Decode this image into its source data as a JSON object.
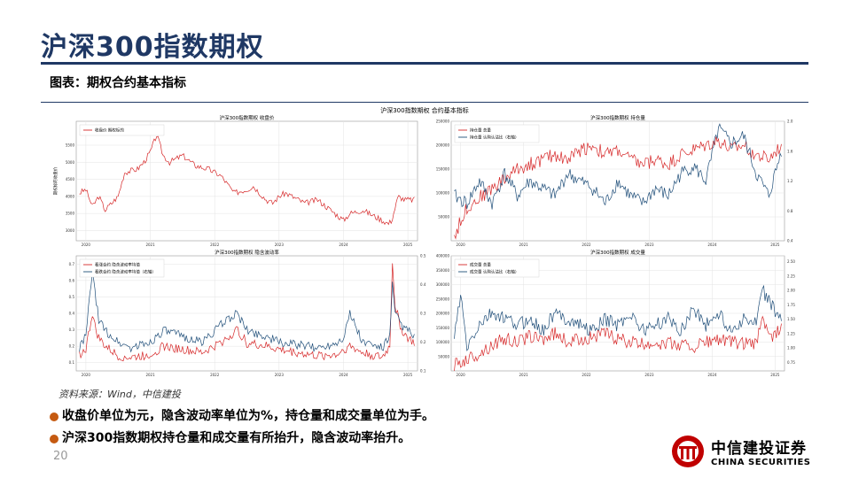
{
  "slide": {
    "title": "沪深300指数期权",
    "subtitle": "图表：期权合约基本指标",
    "source": "资料来源：Wind，中信建投",
    "bullets": [
      "收盘价单位为元，隐含波动率单位为%，持仓量和成交量单位为手。",
      "沪深300指数期权持仓量和成交量有所抬升，隐含波动率抬升。"
    ],
    "page_number": "20",
    "logo": {
      "cn": "中信建投证券",
      "en": "CHINA SECURITIES"
    },
    "colors": {
      "title": "#1f3864",
      "bullet": "#c55a11",
      "red": "#d62728",
      "navy": "#1f4e79",
      "logo_red": "#c00000"
    }
  },
  "chart_data": [
    {
      "type": "line",
      "suptitle": "沪深300指数期权 合约基本指标",
      "title": "沪深300指数期权 收盘价",
      "ylabel": "期权标的收盘价",
      "ylim": [
        2700,
        6200
      ],
      "yticks": [
        "3000",
        "3500",
        "4000",
        "4500",
        "5000",
        "5500"
      ],
      "xticks": [
        "2020",
        "2021",
        "2022",
        "2023",
        "2024",
        "2025"
      ],
      "grid": true,
      "legend": "upper-left",
      "series": [
        {
          "name": "收盘价 期权标的",
          "color": "#d62728",
          "x": [
            2019.9,
            2020.0,
            2020.1,
            2020.2,
            2020.3,
            2020.5,
            2020.6,
            2020.8,
            2020.9,
            2021.0,
            2021.1,
            2021.2,
            2021.3,
            2021.5,
            2021.7,
            2021.9,
            2022.0,
            2022.1,
            2022.3,
            2022.5,
            2022.6,
            2022.8,
            2022.9,
            2023.0,
            2023.1,
            2023.4,
            2023.6,
            2023.8,
            2024.0,
            2024.1,
            2024.3,
            2024.5,
            2024.7,
            2024.75,
            2024.85,
            2024.95,
            2025.1
          ],
          "y": [
            4100,
            4200,
            3700,
            4000,
            3600,
            4000,
            4700,
            4800,
            5000,
            5300,
            5800,
            5200,
            5000,
            5200,
            4900,
            4800,
            4700,
            4600,
            4100,
            4200,
            4300,
            3900,
            3800,
            4000,
            4100,
            3800,
            3900,
            3600,
            3300,
            3500,
            3600,
            3400,
            3200,
            3300,
            4000,
            3900,
            3900
          ]
        }
      ]
    },
    {
      "type": "line",
      "title": "沪深300指数期权 持仓量",
      "ylim": [
        0,
        250000
      ],
      "yticks": [
        "50000",
        "100000",
        "150000",
        "200000",
        "250000"
      ],
      "y2lim": [
        0.4,
        2.0
      ],
      "y2ticks": [
        "0.4",
        "0.8",
        "1.2",
        "1.6",
        "2.0"
      ],
      "xticks": [
        "2020",
        "2021",
        "2022",
        "2023",
        "2024",
        "2025"
      ],
      "grid": true,
      "legend": "upper-left",
      "series": [
        {
          "name": "持仓量 总量",
          "color": "#d62728",
          "axis": "left",
          "x": [
            2019.9,
            2020.1,
            2020.3,
            2020.5,
            2020.7,
            2020.9,
            2021.1,
            2021.3,
            2021.5,
            2021.7,
            2021.9,
            2022.1,
            2022.3,
            2022.5,
            2022.7,
            2022.9,
            2023.1,
            2023.3,
            2023.5,
            2023.7,
            2023.9,
            2024.1,
            2024.3,
            2024.5,
            2024.7,
            2024.9,
            2025.1
          ],
          "y": [
            10000,
            70000,
            90000,
            110000,
            130000,
            150000,
            160000,
            170000,
            180000,
            170000,
            190000,
            200000,
            180000,
            190000,
            170000,
            160000,
            170000,
            160000,
            180000,
            190000,
            200000,
            210000,
            190000,
            200000,
            180000,
            170000,
            200000
          ]
        },
        {
          "name": "持仓量 认购认沽比（右轴）",
          "color": "#1f4e79",
          "axis": "right",
          "x": [
            2019.9,
            2020.1,
            2020.3,
            2020.5,
            2020.7,
            2020.9,
            2021.1,
            2021.3,
            2021.5,
            2021.7,
            2021.9,
            2022.1,
            2022.3,
            2022.5,
            2022.7,
            2022.9,
            2023.1,
            2023.3,
            2023.5,
            2023.7,
            2023.9,
            2024.1,
            2024.3,
            2024.5,
            2024.7,
            2024.9,
            2025.1
          ],
          "y": [
            1.0,
            0.9,
            1.2,
            0.9,
            1.3,
            1.0,
            1.2,
            1.1,
            1.0,
            1.3,
            1.2,
            1.1,
            0.9,
            1.2,
            1.0,
            0.9,
            1.1,
            1.0,
            1.3,
            1.4,
            1.2,
            1.9,
            1.7,
            1.8,
            1.3,
            1.0,
            1.6
          ]
        }
      ]
    },
    {
      "type": "line",
      "title": "沪深300指数期权 隐含波动率",
      "ylim": [
        0.05,
        0.75
      ],
      "yticks": [
        "0.1",
        "0.2",
        "0.3",
        "0.4",
        "0.5",
        "0.6",
        "0.7"
      ],
      "y2lim": [
        0.1,
        0.5
      ],
      "y2ticks": [
        "0.1",
        "0.2",
        "0.3",
        "0.4",
        "0.5"
      ],
      "xticks": [
        "2020",
        "2021",
        "2022",
        "2023",
        "2024",
        "2025"
      ],
      "grid": true,
      "legend": "upper-left",
      "series": [
        {
          "name": "看涨合约 隐含波动率均值",
          "color": "#d62728",
          "axis": "left",
          "x": [
            2019.9,
            2020.0,
            2020.1,
            2020.15,
            2020.2,
            2020.3,
            2020.5,
            2020.7,
            2021.0,
            2021.2,
            2021.5,
            2021.8,
            2022.0,
            2022.2,
            2022.35,
            2022.5,
            2022.8,
            2023.0,
            2023.3,
            2023.6,
            2023.9,
            2024.0,
            2024.1,
            2024.3,
            2024.6,
            2024.72,
            2024.76,
            2024.8,
            2024.9,
            2025.0,
            2025.1
          ],
          "y": [
            0.15,
            0.18,
            0.4,
            0.3,
            0.25,
            0.2,
            0.14,
            0.13,
            0.15,
            0.2,
            0.18,
            0.16,
            0.2,
            0.25,
            0.3,
            0.22,
            0.2,
            0.18,
            0.16,
            0.14,
            0.15,
            0.18,
            0.2,
            0.16,
            0.13,
            0.2,
            0.72,
            0.45,
            0.3,
            0.25,
            0.22
          ]
        },
        {
          "name": "看跌合约 隐含波动率均值（右轴）",
          "color": "#1f4e79",
          "axis": "right",
          "x": [
            2019.9,
            2020.0,
            2020.1,
            2020.15,
            2020.2,
            2020.3,
            2020.5,
            2020.7,
            2021.0,
            2021.2,
            2021.5,
            2021.8,
            2022.0,
            2022.2,
            2022.35,
            2022.5,
            2022.8,
            2023.0,
            2023.3,
            2023.6,
            2023.9,
            2024.0,
            2024.1,
            2024.3,
            2024.6,
            2024.72,
            2024.76,
            2024.8,
            2024.9,
            2025.0,
            2025.1
          ],
          "y": [
            0.18,
            0.22,
            0.45,
            0.35,
            0.28,
            0.24,
            0.2,
            0.18,
            0.2,
            0.24,
            0.22,
            0.2,
            0.24,
            0.28,
            0.3,
            0.24,
            0.22,
            0.2,
            0.19,
            0.18,
            0.2,
            0.22,
            0.3,
            0.2,
            0.18,
            0.22,
            0.4,
            0.3,
            0.26,
            0.24,
            0.22
          ]
        }
      ]
    },
    {
      "type": "line",
      "title": "沪深300指数期权 成交量",
      "ylim": [
        0,
        400000
      ],
      "yticks": [
        "50000",
        "100000",
        "150000",
        "200000",
        "250000",
        "300000",
        "350000",
        "400000"
      ],
      "y2lim": [
        0.6,
        2.6
      ],
      "y2ticks": [
        "0.75",
        "1.00",
        "1.25",
        "1.50",
        "1.75",
        "2.00",
        "2.25",
        "2.50"
      ],
      "xticks": [
        "2020",
        "2021",
        "2022",
        "2023",
        "2024",
        "2025"
      ],
      "grid": true,
      "legend": "upper-left",
      "series": [
        {
          "name": "成交量 总量",
          "color": "#d62728",
          "axis": "left",
          "x": [
            2019.9,
            2020.1,
            2020.3,
            2020.5,
            2020.7,
            2020.9,
            2021.1,
            2021.3,
            2021.5,
            2021.7,
            2021.9,
            2022.1,
            2022.3,
            2022.5,
            2022.7,
            2022.9,
            2023.1,
            2023.3,
            2023.5,
            2023.7,
            2023.9,
            2024.1,
            2024.3,
            2024.5,
            2024.7,
            2024.8,
            2024.9,
            2025.1
          ],
          "y": [
            20000,
            40000,
            60000,
            90000,
            110000,
            100000,
            120000,
            110000,
            130000,
            100000,
            110000,
            120000,
            130000,
            110000,
            100000,
            90000,
            100000,
            95000,
            90000,
            85000,
            100000,
            110000,
            100000,
            95000,
            90000,
            200000,
            110000,
            150000
          ]
        },
        {
          "name": "成交量 认购认沽比（右轴）",
          "color": "#1f4e79",
          "axis": "right",
          "x": [
            2019.9,
            2020.0,
            2020.1,
            2020.3,
            2020.5,
            2020.7,
            2020.9,
            2021.1,
            2021.3,
            2021.5,
            2021.7,
            2021.9,
            2022.1,
            2022.3,
            2022.5,
            2022.7,
            2022.9,
            2023.1,
            2023.3,
            2023.5,
            2023.7,
            2023.9,
            2024.1,
            2024.3,
            2024.5,
            2024.7,
            2024.8,
            2024.9,
            2025.1
          ],
          "y": [
            1.2,
            1.9,
            1.0,
            1.4,
            1.6,
            1.5,
            1.4,
            1.5,
            1.3,
            1.6,
            1.5,
            1.4,
            1.3,
            1.5,
            1.4,
            1.6,
            1.3,
            1.4,
            1.5,
            1.3,
            1.7,
            1.4,
            1.6,
            1.3,
            1.5,
            1.4,
            2.0,
            1.8,
            1.5
          ]
        }
      ]
    }
  ]
}
